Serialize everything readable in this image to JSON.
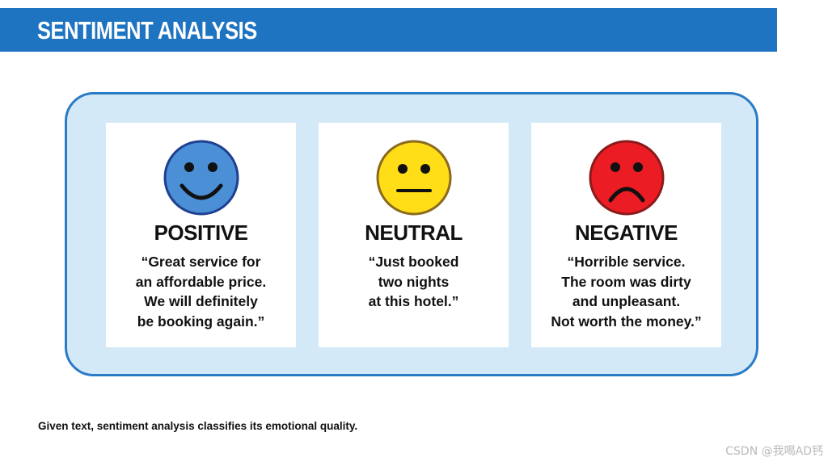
{
  "header": {
    "title": "SENTIMENT ANALYSIS",
    "bar_color": "#1f74c1"
  },
  "panel": {
    "background": "#d4e9f7",
    "border_color": "#2a7bc6"
  },
  "cards": [
    {
      "label": "POSITIVE",
      "icon": "smiley-face-icon",
      "face_color": "#4b8fd6",
      "face_outline": "#1f3f91",
      "quote_lines": [
        "“Great service for",
        "an affordable price.",
        "We will definitely",
        "be booking again.”"
      ]
    },
    {
      "label": "NEUTRAL",
      "icon": "neutral-face-icon",
      "face_color": "#ffdd17",
      "face_outline": "#8a6a1e",
      "quote_lines": [
        "“Just booked",
        "two nights",
        "at this hotel.”"
      ]
    },
    {
      "label": "NEGATIVE",
      "icon": "frowning-face-icon",
      "face_color": "#ec1c24",
      "face_outline": "#8b1a1a",
      "quote_lines": [
        "“Horrible service.",
        "The room was dirty",
        "and unpleasant.",
        "Not worth the money.”"
      ]
    }
  ],
  "caption": "Given text, sentiment analysis classifies its emotional quality.",
  "watermark": "CSDN @我喝AD钙"
}
